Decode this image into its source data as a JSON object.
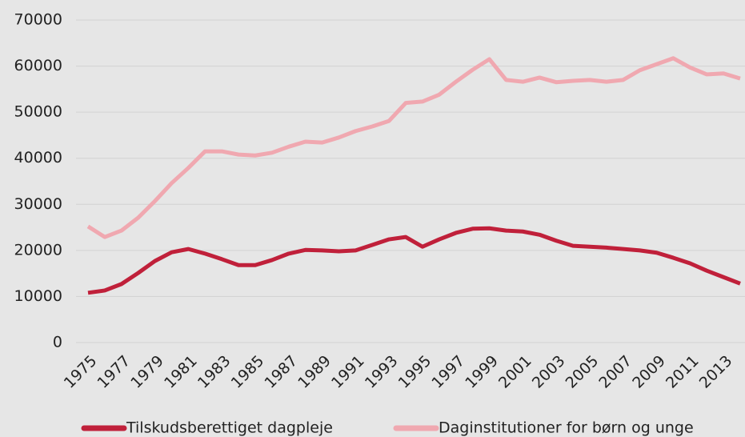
{
  "chart_data": {
    "type": "line",
    "x": [
      1975,
      1976,
      1977,
      1978,
      1979,
      1980,
      1981,
      1982,
      1983,
      1984,
      1985,
      1986,
      1987,
      1988,
      1989,
      1990,
      1991,
      1992,
      1993,
      1994,
      1995,
      1996,
      1997,
      1998,
      1999,
      2000,
      2001,
      2002,
      2003,
      2004,
      2005,
      2006,
      2007,
      2008,
      2009,
      2010,
      2011,
      2012,
      2013,
      2014
    ],
    "series": [
      {
        "name": "Tilskudsberettiget dagpleje",
        "color": "#c0203a",
        "values": [
          10800,
          11300,
          12700,
          15100,
          17700,
          19600,
          20300,
          19300,
          18100,
          16800,
          16800,
          17900,
          19300,
          20100,
          20000,
          19800,
          20000,
          21200,
          22400,
          22900,
          20800,
          22400,
          23800,
          24700,
          24800,
          24300,
          24100,
          23400,
          22100,
          21000,
          20800,
          20600,
          20300,
          20000,
          19500,
          18400,
          17200,
          15600,
          14200,
          12800
        ]
      },
      {
        "name": "Daginstitutioner for børn og unge",
        "color": "#f0a8b0",
        "values": [
          25200,
          22900,
          24300,
          27100,
          30700,
          34600,
          37900,
          41500,
          41500,
          40800,
          40600,
          41200,
          42500,
          43600,
          43400,
          44500,
          45900,
          46900,
          48100,
          52000,
          52300,
          53800,
          56600,
          59200,
          61500,
          57000,
          56600,
          57500,
          56500,
          56800,
          57000,
          56600,
          57000,
          59100,
          60400,
          61700,
          59700,
          58200,
          58400,
          57300
        ]
      }
    ],
    "xlim": [
      1975,
      2014
    ],
    "xticks": [
      1975,
      1977,
      1979,
      1981,
      1983,
      1985,
      1987,
      1989,
      1991,
      1993,
      1995,
      1997,
      1999,
      2001,
      2003,
      2005,
      2007,
      2009,
      2011,
      2013
    ],
    "ylim": [
      0,
      70000
    ],
    "yticks": [
      0,
      10000,
      20000,
      30000,
      40000,
      50000,
      60000,
      70000
    ],
    "grid": true,
    "legend": "bottom"
  }
}
